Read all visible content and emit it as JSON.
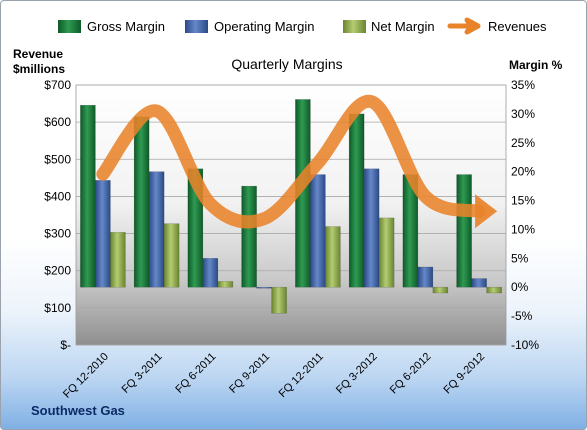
{
  "chart_data": {
    "type": "bar",
    "title": "Quarterly Margins",
    "categories": [
      "FQ 12-2010",
      "FQ 3-2011",
      "FQ 6-2011",
      "FQ 9-2011",
      "FQ 12-2011",
      "FQ 3-2012",
      "FQ 6-2012",
      "FQ 9-2012"
    ],
    "series": [
      {
        "name": "Gross Margin",
        "axis": "right",
        "values": [
          31.5,
          29.5,
          20.5,
          17.5,
          32.5,
          30.0,
          19.5,
          19.5
        ]
      },
      {
        "name": "Operating Margin",
        "axis": "right",
        "values": [
          18.5,
          20.0,
          5.0,
          0.0,
          19.5,
          20.5,
          3.5,
          1.5
        ]
      },
      {
        "name": "Net Margin",
        "axis": "right",
        "values": [
          9.5,
          11.0,
          1.0,
          -4.5,
          10.5,
          12.0,
          -1.0,
          -1.0
        ]
      },
      {
        "name": "Revenues",
        "type": "line",
        "axis": "left",
        "values": [
          460,
          630,
          380,
          340,
          490,
          655,
          400,
          360
        ]
      }
    ],
    "left_axis": {
      "label_line1": "Revenue",
      "label_line2": "$millions",
      "ticks": [
        "$-",
        "$100",
        "$200",
        "$300",
        "$400",
        "$500",
        "$600",
        "$700"
      ],
      "range": [
        0,
        700
      ]
    },
    "right_axis": {
      "label": "Margin %",
      "ticks": [
        "-10%",
        "-5%",
        "0%",
        "5%",
        "10%",
        "15%",
        "20%",
        "25%",
        "30%",
        "35%"
      ],
      "range": [
        -10,
        35
      ]
    },
    "legend_position": "top",
    "colors": {
      "Gross Margin": "#1e7a3c",
      "Operating Margin": "#3f64a8",
      "Net Margin": "#93ad4c",
      "Revenues": "#e8832a"
    },
    "company": "Southwest Gas"
  }
}
